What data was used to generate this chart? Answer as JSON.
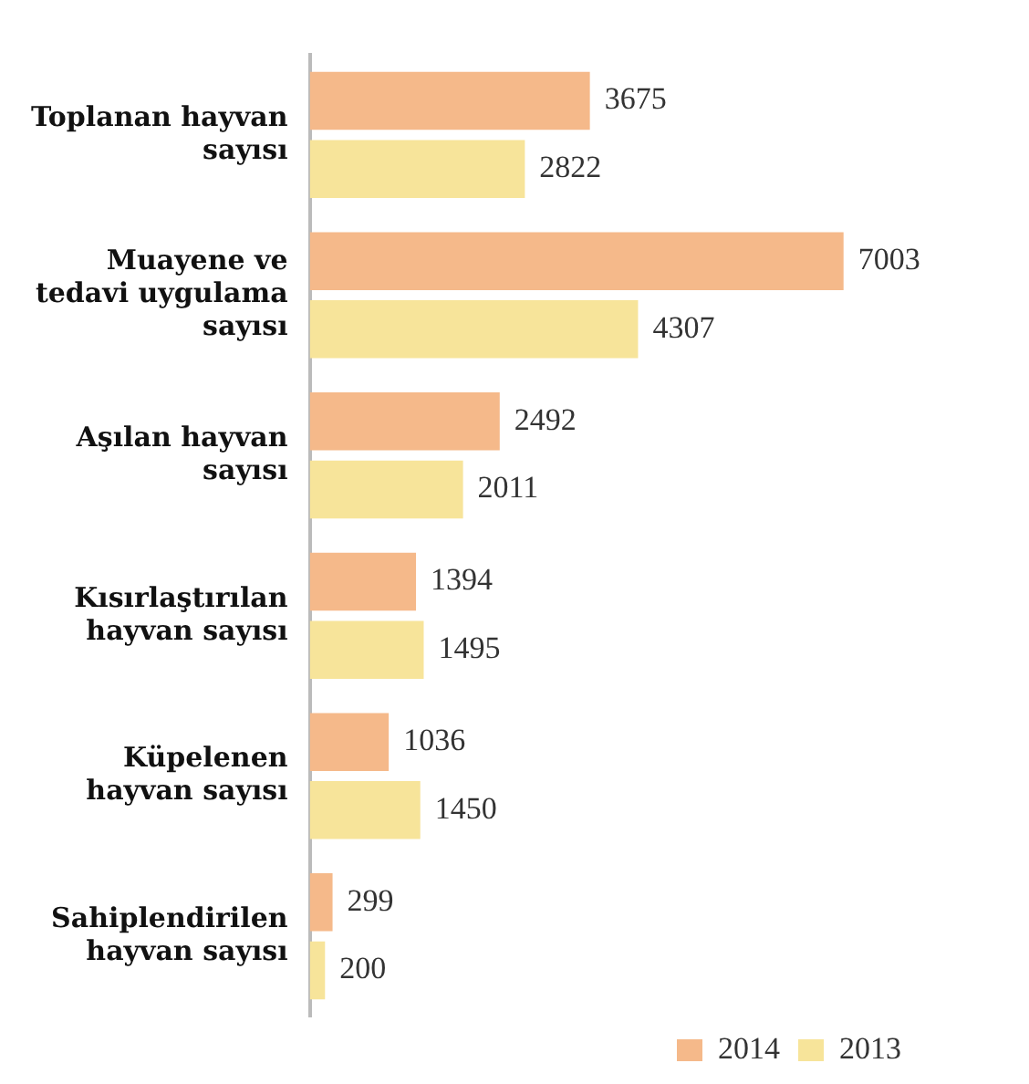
{
  "chart_data": {
    "type": "bar",
    "orientation": "horizontal",
    "categories": [
      "Toplanan hayvan sayısı",
      "Muayene ve tedavi uygulama sayısı",
      "Aşılan hayvan sayısı",
      "Kısırlaştırılan hayvan sayısı",
      "Küpelenen hayvan sayısı",
      "Sahiplendirilen hayvan sayısı"
    ],
    "series": [
      {
        "name": "2014",
        "color": "#f5b98a",
        "values": [
          3675,
          7003,
          2492,
          1394,
          1036,
          299
        ]
      },
      {
        "name": "2013",
        "color": "#f7e49a",
        "values": [
          2822,
          4307,
          2011,
          1495,
          1450,
          200
        ]
      }
    ],
    "data_labels": true,
    "legend": "bottom right"
  }
}
